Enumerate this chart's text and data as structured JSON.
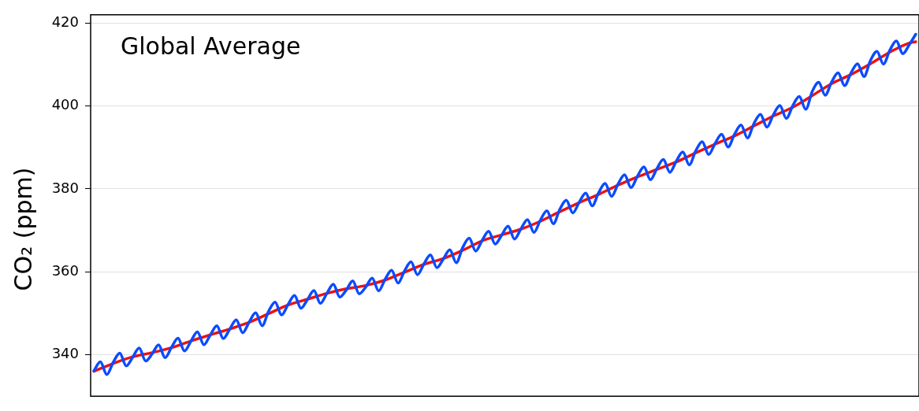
{
  "chart_data": {
    "type": "line",
    "ylabel": "CO₂ (ppm)",
    "annotations": [
      "Global Average"
    ],
    "categories": [
      null,
      null,
      null,
      null,
      null,
      null,
      null,
      null,
      null,
      null,
      null,
      null,
      null,
      null,
      null,
      null,
      null,
      null,
      null,
      null,
      null,
      null,
      null,
      null,
      null,
      null,
      null,
      null,
      null,
      null,
      null,
      null,
      null,
      null,
      null,
      null,
      null,
      null,
      null,
      null,
      null,
      null,
      null,
      null,
      null,
      null,
      null,
      null,
      null,
      null,
      null,
      null,
      null,
      null,
      null,
      null,
      null,
      null,
      null,
      null,
      null,
      null,
      null,
      null,
      null,
      null,
      null,
      null,
      null,
      null,
      null,
      null,
      null,
      null,
      null,
      null,
      null,
      null,
      null,
      null,
      null,
      null,
      null,
      null,
      null,
      null,
      null,
      null,
      null,
      null,
      null,
      null,
      null,
      null,
      null,
      null,
      null,
      null,
      null,
      null,
      null,
      null,
      null,
      null,
      null,
      null,
      null,
      null,
      null,
      null,
      null,
      null,
      null,
      null,
      null,
      null,
      null,
      null,
      null,
      null,
      null,
      null,
      null,
      null,
      null,
      null,
      null,
      null
    ],
    "ylim": [
      330,
      422
    ],
    "yticks": [
      340,
      360,
      380,
      400,
      420
    ],
    "tick_labels": "y",
    "grid": "y",
    "legend": false,
    "marker": "none",
    "line_style": "solid",
    "series": [
      {
        "color": "#0a4bff",
        "values": [
          336.1,
          338.3,
          335.2,
          338.2,
          340.4,
          337.3,
          339.4,
          341.6,
          338.5,
          340.2,
          342.4,
          339.3,
          341.8,
          344.0,
          340.9,
          343.3,
          345.5,
          342.4,
          344.8,
          347.0,
          343.9,
          346.2,
          348.4,
          345.3,
          347.9,
          350.1,
          347.0,
          350.5,
          352.7,
          349.6,
          352.1,
          354.3,
          351.2,
          353.3,
          355.5,
          352.4,
          354.8,
          357.0,
          353.9,
          355.6,
          357.8,
          354.7,
          356.3,
          358.5,
          355.4,
          358.2,
          360.4,
          357.3,
          360.2,
          362.4,
          359.3,
          361.9,
          364.1,
          361.0,
          363.1,
          365.3,
          362.2,
          365.9,
          368.1,
          365.0,
          367.6,
          369.8,
          366.7,
          368.8,
          371.0,
          367.9,
          370.4,
          372.6,
          369.5,
          372.5,
          374.7,
          371.6,
          375.1,
          377.3,
          374.2,
          376.8,
          379.0,
          375.9,
          379.1,
          381.3,
          378.2,
          381.2,
          383.4,
          380.3,
          383.1,
          385.3,
          382.2,
          384.9,
          387.1,
          384.0,
          386.7,
          388.9,
          385.8,
          389.2,
          391.4,
          388.3,
          391.0,
          393.2,
          390.1,
          393.2,
          395.4,
          392.3,
          395.8,
          398.0,
          394.9,
          397.9,
          400.1,
          397.0,
          400.1,
          402.3,
          399.2,
          403.5,
          405.7,
          402.6,
          405.8,
          408.0,
          404.9,
          408.0,
          410.2,
          407.1,
          411.0,
          413.2,
          410.1,
          413.5,
          415.7,
          412.6,
          414.8,
          417.3
        ]
      },
      {
        "color": "#ee1111",
        "values": [
          336.0,
          null,
          null,
          337.9,
          null,
          null,
          339.5,
          null,
          null,
          340.5,
          null,
          null,
          341.7,
          null,
          null,
          343.3,
          null,
          null,
          344.8,
          null,
          null,
          346.2,
          null,
          null,
          347.8,
          null,
          null,
          349.9,
          null,
          null,
          352.0,
          null,
          null,
          353.4,
          null,
          null,
          354.8,
          null,
          null,
          355.9,
          null,
          null,
          356.7,
          null,
          null,
          358.0,
          null,
          null,
          359.9,
          null,
          null,
          361.8,
          null,
          null,
          363.2,
          null,
          null,
          365.2,
          null,
          null,
          367.5,
          null,
          null,
          368.9,
          null,
          null,
          370.3,
          null,
          null,
          372.2,
          null,
          null,
          374.5,
          null,
          null,
          376.7,
          null,
          null,
          378.7,
          null,
          null,
          380.9,
          null,
          null,
          382.9,
          null,
          null,
          384.7,
          null,
          null,
          386.5,
          null,
          null,
          388.7,
          null,
          null,
          390.8,
          null,
          null,
          392.8,
          null,
          null,
          395.2,
          null,
          null,
          397.6,
          null,
          null,
          399.7,
          null,
          null,
          402.5,
          null,
          null,
          405.4,
          null,
          null,
          407.6,
          null,
          null,
          410.2,
          null,
          null,
          413.0,
          null,
          null,
          415.2,
          415.5
        ]
      }
    ]
  }
}
